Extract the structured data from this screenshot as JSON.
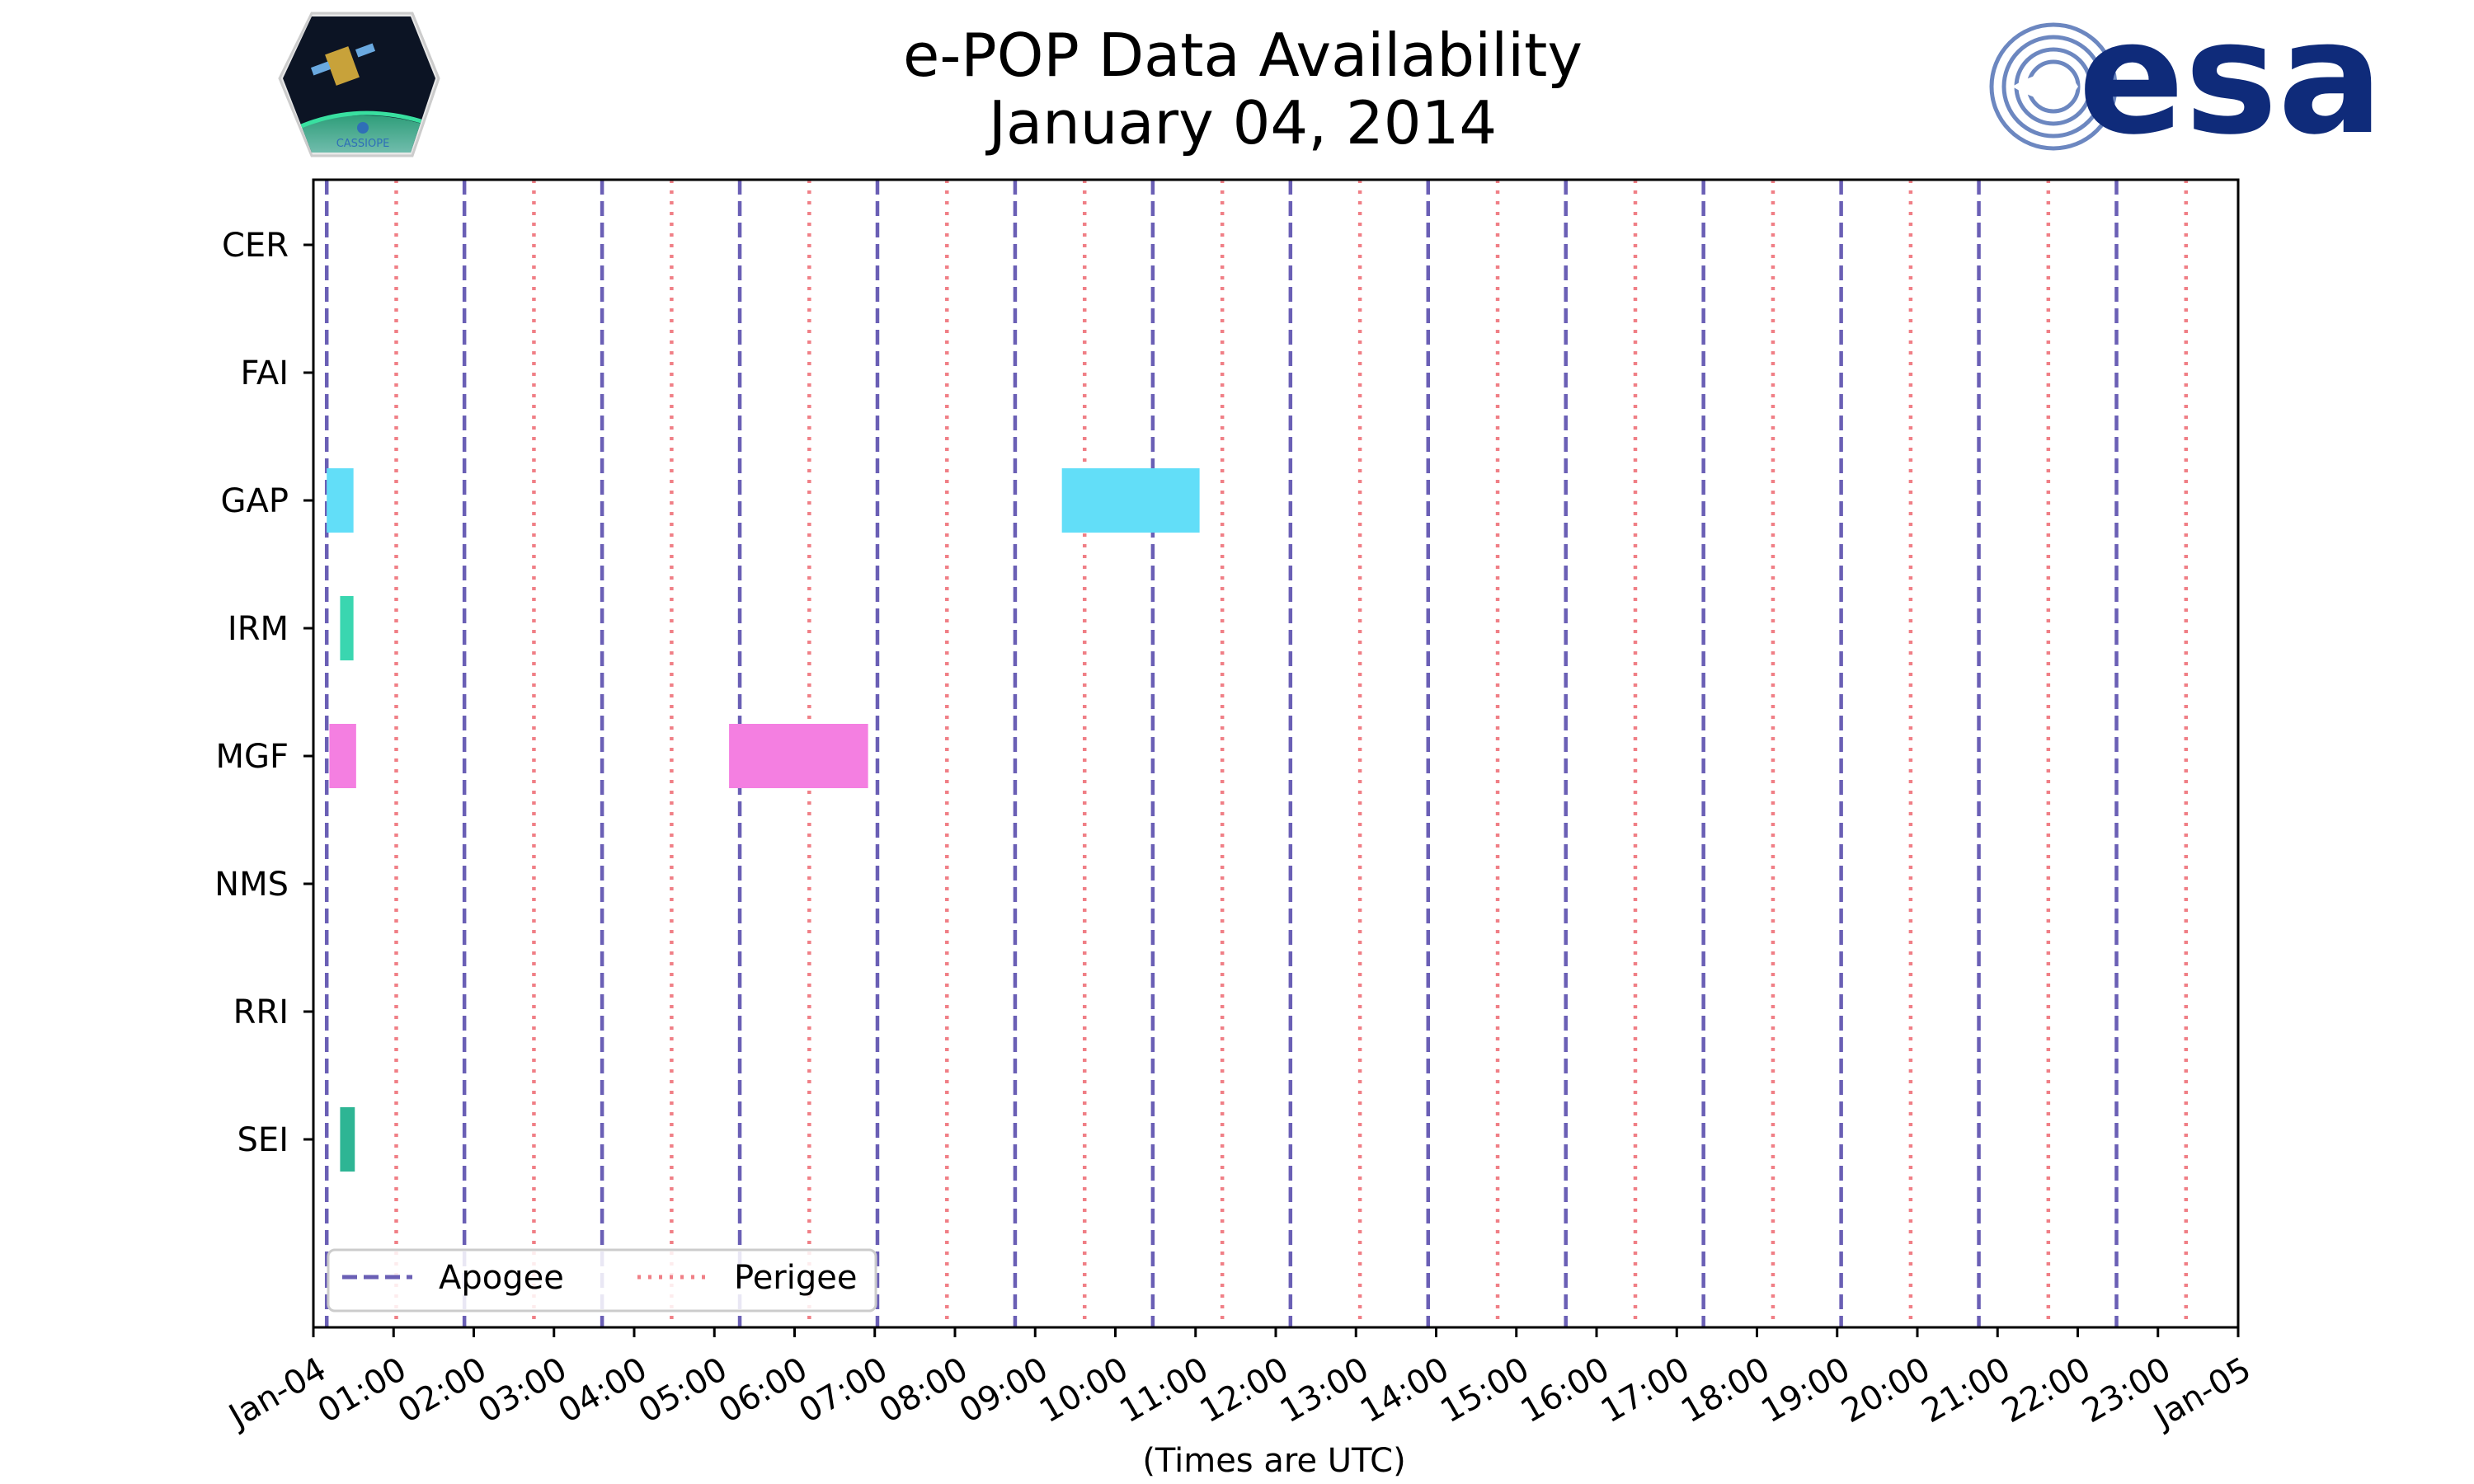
{
  "colors": {
    "apogee": "#6a5fb5",
    "perigee": "#f07f86",
    "gap": "#62def8",
    "irm": "#3ad6b0",
    "mgf": "#f47fe1",
    "sei": "#2eb594",
    "esa_blue": "#0f2b7a"
  },
  "logos": {
    "left_text": "CASSIOPE",
    "right_text": "esa"
  },
  "chart_data": {
    "type": "gantt",
    "title": [
      "e-POP Data Availability",
      "January 04, 2014"
    ],
    "xlabel": "(Times are UTC)",
    "x_range": [
      "2014-01-04T00:00",
      "2014-01-05T00:00"
    ],
    "x_tick_labels": [
      "Jan-04",
      "01:00",
      "02:00",
      "03:00",
      "04:00",
      "05:00",
      "06:00",
      "07:00",
      "08:00",
      "09:00",
      "10:00",
      "11:00",
      "12:00",
      "13:00",
      "14:00",
      "15:00",
      "16:00",
      "17:00",
      "18:00",
      "19:00",
      "20:00",
      "21:00",
      "22:00",
      "23:00",
      "Jan-05"
    ],
    "instruments": [
      "CER",
      "FAI",
      "GAP",
      "IRM",
      "MGF",
      "NMS",
      "RRI",
      "SEI"
    ],
    "intervals": [
      {
        "instrument": "GAP",
        "start": "00:10",
        "end": "00:30",
        "color": "gap"
      },
      {
        "instrument": "GAP",
        "start": "09:20",
        "end": "11:03",
        "color": "gap"
      },
      {
        "instrument": "IRM",
        "start": "00:20",
        "end": "00:30",
        "color": "irm"
      },
      {
        "instrument": "MGF",
        "start": "00:12",
        "end": "00:32",
        "color": "mgf"
      },
      {
        "instrument": "MGF",
        "start": "05:11",
        "end": "06:55",
        "color": "mgf"
      },
      {
        "instrument": "SEI",
        "start": "00:20",
        "end": "00:31",
        "color": "sei"
      }
    ],
    "apogee_times": [
      "00:10",
      "01:53",
      "03:36",
      "05:19",
      "07:02",
      "08:45",
      "10:28",
      "12:11",
      "13:54",
      "15:37",
      "17:20",
      "19:03",
      "20:46",
      "22:29"
    ],
    "perigee_times": [
      "01:02",
      "02:45",
      "04:28",
      "06:11",
      "07:54",
      "09:37",
      "11:20",
      "13:03",
      "14:46",
      "16:29",
      "18:12",
      "19:55",
      "21:38",
      "23:21"
    ],
    "legend": {
      "position": "bottom-left",
      "entries": [
        {
          "label": "Apogee",
          "style": "dashed",
          "color": "apogee"
        },
        {
          "label": "Perigee",
          "style": "dotted",
          "color": "perigee"
        }
      ]
    }
  }
}
